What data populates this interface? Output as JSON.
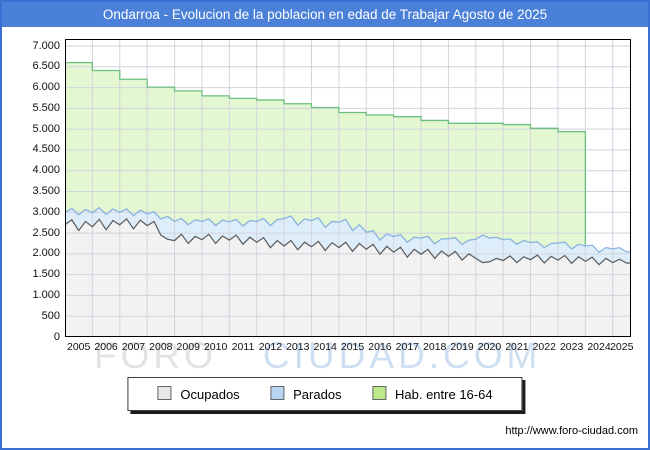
{
  "title_bar": {
    "text": "Ondarroa - Evolucion de la poblacion en edad de Trabajar Agosto de 2025",
    "bg": "#4a80d8",
    "fg": "#ffffff"
  },
  "watermark": {
    "part1": "FORO",
    "part2": "CIUDAD.COM"
  },
  "footer": {
    "url_label": "http://www.foro-ciudad.com"
  },
  "legend": {
    "items": [
      {
        "label": "Ocupados",
        "color": "#e8e8e8"
      },
      {
        "label": "Parados",
        "color": "#b8d6f2"
      },
      {
        "label": "Hab. entre 16-64",
        "color": "#bce98c"
      }
    ]
  },
  "chart_data": {
    "type": "area",
    "title": "Ondarroa - Evolucion de la poblacion en edad de Trabajar Agosto de 2025",
    "xlabel": "",
    "ylabel": "",
    "xlim": [
      2005,
      2025.667
    ],
    "ylim": [
      0,
      7000
    ],
    "grid": true,
    "legend_position": "bottom",
    "x_ticks": [
      "2005",
      "2006",
      "2007",
      "2008",
      "2009",
      "2010",
      "2011",
      "2012",
      "2013",
      "2014",
      "2015",
      "2016",
      "2017",
      "2018",
      "2019",
      "2020",
      "2021",
      "2022",
      "2023",
      "2024",
      "2025"
    ],
    "y_ticks": [
      "0",
      "500",
      "1.000",
      "1.500",
      "2.000",
      "2.500",
      "3.000",
      "3.500",
      "4.000",
      "4.500",
      "5.000",
      "5.500",
      "6.000",
      "6.500",
      "7.000"
    ],
    "colors": {
      "hab_fill": "#e3f7d0",
      "hab_line": "#6cbf7e",
      "parados_fill": "#ddedfa",
      "parados_line": "#8ab2e0",
      "ocupados_fill": "#f2f2f2",
      "ocupados_line": "#5a5a5a",
      "gridline": "#d3d3de",
      "frame": "#000000"
    },
    "series": [
      {
        "name": "Hab. entre 16-64",
        "style": "yearly-steps",
        "years": [
          2005,
          2006,
          2007,
          2008,
          2009,
          2010,
          2011,
          2012,
          2013,
          2014,
          2015,
          2016,
          2017,
          2018,
          2019,
          2020,
          2021,
          2022,
          2023
        ],
        "values": [
          6600,
          6410,
          6200,
          6010,
          5920,
          5800,
          5740,
          5700,
          5610,
          5520,
          5400,
          5340,
          5300,
          5210,
          5140,
          5140,
          5110,
          5020,
          4940
        ],
        "end_x": 2024.0
      },
      {
        "name": "Parados (apilado: Ocupados + Parados)",
        "style": "line-area",
        "x_start": 2005.0,
        "x_step": 0.25,
        "values": [
          3000,
          3090,
          2940,
          3070,
          2990,
          3110,
          2950,
          3080,
          3000,
          3080,
          2920,
          3050,
          2960,
          3010,
          2840,
          2900,
          2780,
          2850,
          2700,
          2820,
          2780,
          2840,
          2680,
          2810,
          2770,
          2830,
          2670,
          2800,
          2780,
          2850,
          2680,
          2820,
          2850,
          2910,
          2690,
          2840,
          2800,
          2870,
          2640,
          2780,
          2760,
          2830,
          2560,
          2700,
          2520,
          2560,
          2330,
          2480,
          2420,
          2460,
          2280,
          2400,
          2380,
          2420,
          2240,
          2360,
          2360,
          2390,
          2230,
          2330,
          2350,
          2450,
          2380,
          2400,
          2340,
          2360,
          2230,
          2320,
          2270,
          2290,
          2150,
          2250,
          2260,
          2280,
          2120,
          2230,
          2190,
          2210,
          2040,
          2150,
          2120,
          2150,
          2050
        ]
      },
      {
        "name": "Ocupados",
        "style": "line-area",
        "x_start": 2005.0,
        "x_step": 0.25,
        "values": [
          2700,
          2820,
          2560,
          2780,
          2650,
          2830,
          2580,
          2800,
          2700,
          2840,
          2600,
          2810,
          2680,
          2780,
          2450,
          2350,
          2320,
          2470,
          2250,
          2420,
          2340,
          2470,
          2250,
          2430,
          2330,
          2450,
          2230,
          2400,
          2280,
          2390,
          2150,
          2320,
          2190,
          2320,
          2100,
          2280,
          2170,
          2300,
          2080,
          2270,
          2150,
          2280,
          2060,
          2250,
          2110,
          2230,
          1990,
          2180,
          2040,
          2160,
          1920,
          2110,
          1990,
          2110,
          1890,
          2070,
          1940,
          2060,
          1850,
          2000,
          1890,
          1790,
          1810,
          1890,
          1840,
          1950,
          1790,
          1930,
          1860,
          1970,
          1780,
          1940,
          1850,
          1960,
          1770,
          1930,
          1820,
          1920,
          1740,
          1890,
          1790,
          1870,
          1780
        ]
      }
    ]
  }
}
